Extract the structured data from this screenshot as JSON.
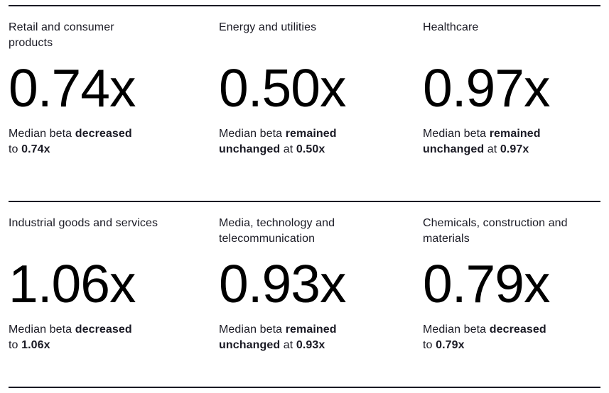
{
  "page": {
    "background_color": "#ffffff",
    "rule_color": "#1a1a24",
    "text_color": "#1a1a24",
    "number_color": "#000000"
  },
  "cards": [
    {
      "sector": "Retail and consumer products",
      "beta": "0.74x",
      "caption": {
        "full_text": "Median beta decreased to 0.74x",
        "lines": [
          [
            {
              "text": "Median beta ",
              "bold": false
            },
            {
              "text": "decreased",
              "bold": true
            }
          ],
          [
            {
              "text": "to ",
              "bold": false
            },
            {
              "text": "0.74x",
              "bold": true
            }
          ]
        ]
      }
    },
    {
      "sector": "Energy and utilities",
      "beta": "0.50x",
      "caption": {
        "full_text": "Median beta remained unchanged at 0.50x",
        "lines": [
          [
            {
              "text": "Median beta ",
              "bold": false
            },
            {
              "text": "remained",
              "bold": true
            }
          ],
          [
            {
              "text": "unchanged",
              "bold": true
            },
            {
              "text": " at ",
              "bold": false
            },
            {
              "text": "0.50x",
              "bold": true
            }
          ]
        ]
      }
    },
    {
      "sector": "Healthcare",
      "beta": "0.97x",
      "caption": {
        "full_text": "Median beta remained unchanged at 0.97x",
        "lines": [
          [
            {
              "text": "Median beta ",
              "bold": false
            },
            {
              "text": "remained",
              "bold": true
            }
          ],
          [
            {
              "text": "unchanged",
              "bold": true
            },
            {
              "text": " at ",
              "bold": false
            },
            {
              "text": "0.97x",
              "bold": true
            }
          ]
        ]
      }
    },
    {
      "sector": "Industrial goods and services",
      "beta": "1.06x",
      "caption": {
        "full_text": "Median beta decreased to 1.06x",
        "lines": [
          [
            {
              "text": "Median beta ",
              "bold": false
            },
            {
              "text": "decreased",
              "bold": true
            }
          ],
          [
            {
              "text": "to ",
              "bold": false
            },
            {
              "text": "1.06x",
              "bold": true
            }
          ]
        ]
      }
    },
    {
      "sector": "Media, technology and telecommunication",
      "beta": "0.93x",
      "caption": {
        "full_text": "Median beta remained unchanged at 0.93x",
        "lines": [
          [
            {
              "text": "Median beta ",
              "bold": false
            },
            {
              "text": "remained",
              "bold": true
            }
          ],
          [
            {
              "text": "unchanged",
              "bold": true
            },
            {
              "text": " at ",
              "bold": false
            },
            {
              "text": "0.93x",
              "bold": true
            }
          ]
        ]
      }
    },
    {
      "sector": "Chemicals, construction and materials",
      "beta": "0.79x",
      "caption": {
        "full_text": "Median beta decreased to 0.79x",
        "lines": [
          [
            {
              "text": "Median beta ",
              "bold": false
            },
            {
              "text": "decreased",
              "bold": true
            }
          ],
          [
            {
              "text": "to ",
              "bold": false
            },
            {
              "text": "0.79x",
              "bold": true
            }
          ]
        ]
      }
    }
  ]
}
